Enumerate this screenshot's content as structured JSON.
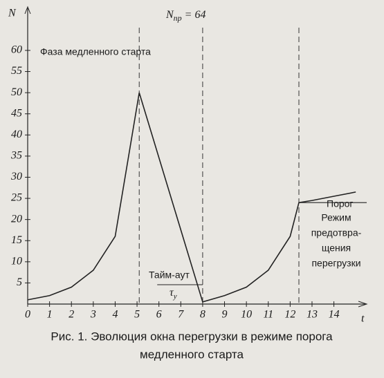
{
  "chart_data": {
    "type": "line",
    "title": {
      "symbol": "N",
      "subscript": "пр",
      "text": "= 64"
    },
    "y_label": "N",
    "x_label": "t",
    "x": [
      0,
      1,
      2,
      3,
      4,
      5.1,
      8,
      9,
      10,
      11,
      12,
      12.4,
      13,
      14,
      15
    ],
    "series": [
      {
        "color": "#222",
        "values": [
          1,
          2,
          4,
          8,
          16,
          50,
          0.5,
          2,
          4,
          8,
          16,
          24,
          24.5,
          25.5,
          26.5
        ]
      }
    ],
    "xlim": [
      0,
      15.5
    ],
    "ylim": [
      0,
      68
    ],
    "xticks": [
      0,
      1,
      2,
      3,
      4,
      5,
      6,
      7,
      8,
      9,
      10,
      11,
      12,
      13,
      14
    ],
    "yticks": [
      5,
      10,
      15,
      20,
      25,
      30,
      35,
      40,
      45,
      50,
      55,
      60
    ],
    "dashed_x": [
      5.1,
      8,
      12.4
    ],
    "threshold": 24,
    "annotations": {
      "slow_start": "Фаза медленного старта",
      "timeout": "Тайм-аут",
      "tau": "τ",
      "tau_sub": "у",
      "threshold": "Порог",
      "avoidance": [
        "Режим",
        "предотвра-",
        "щения",
        "перегрузки"
      ]
    },
    "caption": [
      "Рис. 1. Эволюция окна перегрузки в режиме порога",
      "медленного старта"
    ]
  }
}
